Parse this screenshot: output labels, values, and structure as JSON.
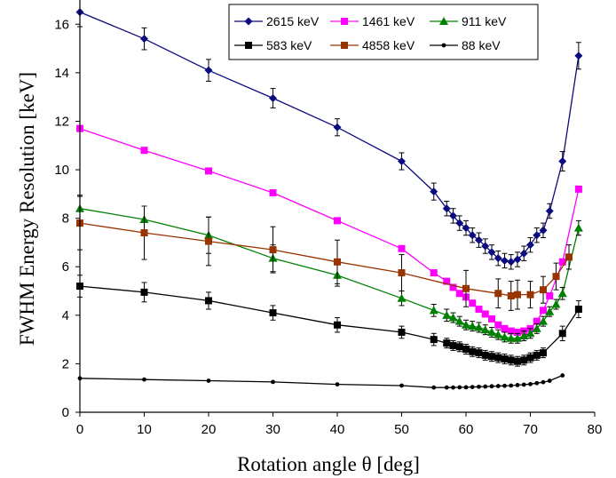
{
  "chart_data": {
    "type": "line",
    "xlabel": "Rotation angle θ  [deg]",
    "ylabel": "FWHM Energy Resolution  [keV]",
    "xlim": [
      0,
      80
    ],
    "ylim": [
      0,
      17
    ],
    "x_ticks": [
      "0",
      "10",
      "20",
      "30",
      "40",
      "50",
      "60",
      "70",
      "80"
    ],
    "y_ticks": [
      "0",
      "2",
      "4",
      "6",
      "8",
      "10",
      "12",
      "14",
      "16"
    ],
    "legend_position": "top-right",
    "series": [
      {
        "name": "2615 keV",
        "color": "#0b0b80",
        "marker": "diamond",
        "x": [
          0,
          10,
          20,
          30,
          40,
          50,
          55,
          57,
          58,
          59,
          60,
          61,
          62,
          63,
          64,
          65,
          66,
          67,
          68,
          69,
          70,
          71,
          72,
          73,
          75,
          77.5
        ],
        "y": [
          16.5,
          15.4,
          14.1,
          12.95,
          11.75,
          10.35,
          9.1,
          8.4,
          8.1,
          7.8,
          7.6,
          7.3,
          7.1,
          6.85,
          6.6,
          6.35,
          6.25,
          6.2,
          6.3,
          6.55,
          6.9,
          7.3,
          7.5,
          8.3,
          10.35,
          14.7
        ],
        "err": [
          0.6,
          0.45,
          0.45,
          0.4,
          0.35,
          0.35,
          0.35,
          0.3,
          0.3,
          0.3,
          0.3,
          0.3,
          0.3,
          0.3,
          0.3,
          0.3,
          0.3,
          0.3,
          0.3,
          0.3,
          0.3,
          0.3,
          0.3,
          0.3,
          0.4,
          0.55
        ]
      },
      {
        "name": "1461 keV",
        "color": "#ff00ff",
        "marker": "square",
        "x": [
          0,
          10,
          20,
          30,
          40,
          50,
          55,
          57,
          58,
          59,
          60,
          61,
          62,
          63,
          64,
          65,
          66,
          67,
          68,
          69,
          70,
          71,
          72,
          73,
          75,
          77.5
        ],
        "y": [
          11.7,
          10.8,
          9.95,
          9.05,
          7.9,
          6.75,
          5.75,
          5.4,
          5.15,
          4.9,
          4.75,
          4.5,
          4.25,
          4.05,
          3.85,
          3.6,
          3.45,
          3.35,
          3.3,
          3.35,
          3.45,
          3.75,
          4.2,
          4.8,
          6.2,
          9.2
        ],
        "err": []
      },
      {
        "name": "911 keV",
        "color": "#008000",
        "marker": "triangle",
        "x": [
          0,
          10,
          20,
          30,
          40,
          50,
          55,
          57,
          58,
          59,
          60,
          61,
          62,
          63,
          64,
          65,
          66,
          67,
          68,
          69,
          70,
          71,
          72,
          73,
          74,
          75,
          77.5
        ],
        "y": [
          8.4,
          7.95,
          7.3,
          6.35,
          5.65,
          4.7,
          4.2,
          4.0,
          3.9,
          3.75,
          3.6,
          3.55,
          3.5,
          3.4,
          3.3,
          3.2,
          3.1,
          3.05,
          3.05,
          3.15,
          3.25,
          3.45,
          3.75,
          4.15,
          4.45,
          4.9,
          7.6
        ],
        "err": [
          0.55,
          0.55,
          0.75,
          0.55,
          0.45,
          0.3,
          0.25,
          0.25,
          0.2,
          0.2,
          0.2,
          0.2,
          0.2,
          0.2,
          0.2,
          0.2,
          0.2,
          0.2,
          0.2,
          0.2,
          0.2,
          0.2,
          0.2,
          0.2,
          0.2,
          0.25,
          0.3
        ]
      },
      {
        "name": "583 keV",
        "color": "#000000",
        "marker": "square",
        "x": [
          0,
          10,
          20,
          30,
          40,
          50,
          55,
          57,
          58,
          59,
          60,
          61,
          62,
          63,
          64,
          65,
          66,
          67,
          68,
          69,
          70,
          71,
          72,
          75,
          77.5
        ],
        "y": [
          5.2,
          4.95,
          4.6,
          4.1,
          3.6,
          3.3,
          3.0,
          2.85,
          2.75,
          2.7,
          2.6,
          2.5,
          2.45,
          2.35,
          2.3,
          2.25,
          2.2,
          2.15,
          2.1,
          2.15,
          2.25,
          2.35,
          2.45,
          3.25,
          4.25
        ],
        "err": [
          0.45,
          0.4,
          0.35,
          0.3,
          0.3,
          0.25,
          0.25,
          0.2,
          0.2,
          0.2,
          0.2,
          0.2,
          0.2,
          0.2,
          0.2,
          0.2,
          0.2,
          0.2,
          0.2,
          0.2,
          0.2,
          0.2,
          0.2,
          0.3,
          0.35
        ]
      },
      {
        "name": "4858  keV",
        "color": "#993300",
        "marker": "square",
        "x": [
          0,
          10,
          20,
          30,
          40,
          50,
          60,
          65,
          67,
          68,
          70,
          72,
          74,
          76
        ],
        "y": [
          7.8,
          7.4,
          7.05,
          6.7,
          6.2,
          5.75,
          5.1,
          4.9,
          4.8,
          4.85,
          4.85,
          5.05,
          5.6,
          6.4
        ],
        "err": [
          1.1,
          1.1,
          1.0,
          0.95,
          0.9,
          0.75,
          0.75,
          0.6,
          0.6,
          0.6,
          0.55,
          0.55,
          0.55,
          0.5
        ]
      },
      {
        "name": "88 keV",
        "color": "#000000",
        "marker": "dot",
        "x": [
          0,
          10,
          20,
          30,
          40,
          50,
          55,
          57,
          58,
          59,
          60,
          61,
          62,
          63,
          64,
          65,
          66,
          67,
          68,
          69,
          70,
          71,
          72,
          73,
          75
        ],
        "y": [
          1.4,
          1.35,
          1.3,
          1.25,
          1.15,
          1.1,
          1.02,
          1.02,
          1.02,
          1.03,
          1.03,
          1.04,
          1.05,
          1.06,
          1.07,
          1.08,
          1.09,
          1.1,
          1.12,
          1.14,
          1.16,
          1.2,
          1.24,
          1.3,
          1.52
        ],
        "err": []
      }
    ]
  }
}
